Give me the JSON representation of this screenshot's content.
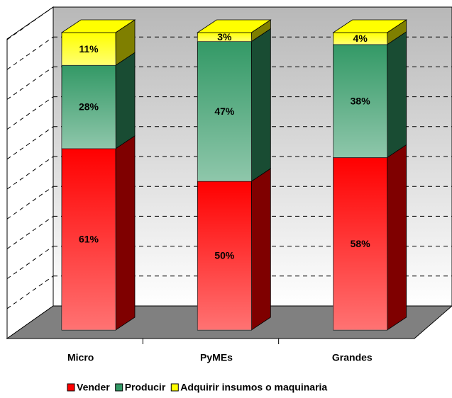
{
  "chart_data": {
    "type": "bar",
    "stacked": true,
    "categories": [
      "Micro",
      "PyMEs",
      "Grandes"
    ],
    "series": [
      {
        "name": "Vender",
        "color": "#ff0000",
        "values": [
          61,
          50,
          58
        ],
        "value_labels": [
          "61%",
          "50%",
          "58%"
        ]
      },
      {
        "name": "Producir",
        "color": "#339966",
        "values": [
          28,
          47,
          38
        ],
        "value_labels": [
          "28%",
          "47%",
          "38%"
        ]
      },
      {
        "name": "Adquirir insumos o maquinaria",
        "color": "#ffff00",
        "values": [
          11,
          3,
          4
        ],
        "value_labels": [
          "11%",
          "3%",
          "4%"
        ]
      }
    ],
    "ylim": [
      0,
      100
    ],
    "yticks": [
      0,
      10,
      20,
      30,
      40,
      50,
      60,
      70,
      80,
      90,
      100
    ],
    "grid": true,
    "legend": "bottom"
  }
}
